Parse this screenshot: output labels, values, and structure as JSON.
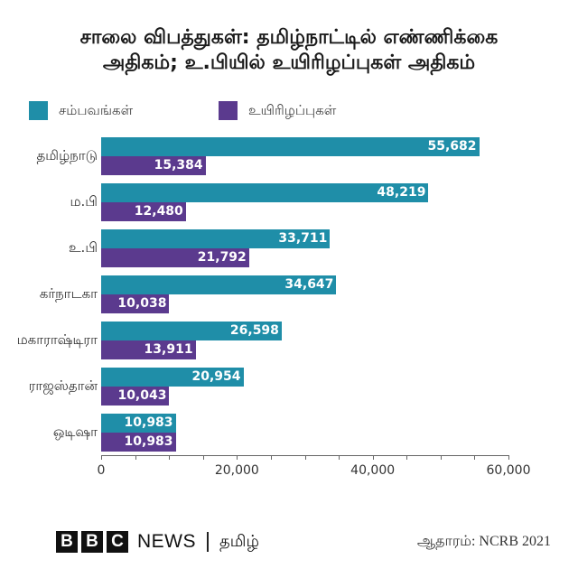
{
  "title": {
    "line1": "சாலை விபத்துகள்: தமிழ்நாட்டில் எண்ணிக்கை",
    "line2": "அதிகம்; உ.பியில் உயிரிழப்புகள் அதிகம்"
  },
  "legend": [
    {
      "label": "சம்பவங்கள்",
      "color": "#1f8ea8"
    },
    {
      "label": "உயிரிழப்புகள்",
      "color": "#5b3a8e"
    }
  ],
  "colors": {
    "accidents": "#1f8ea8",
    "deaths": "#5b3a8e"
  },
  "axis": {
    "ticks": [
      "0",
      "20,000",
      "40,000",
      "60,000"
    ],
    "min": 0,
    "max": 60000
  },
  "rows": [
    {
      "state": "தமிழ்நாடு",
      "accidents": 55682,
      "accidents_label": "55,682",
      "deaths": 15384,
      "deaths_label": "15,384"
    },
    {
      "state": "ம.பி",
      "accidents": 48219,
      "accidents_label": "48,219",
      "deaths": 12480,
      "deaths_label": "12,480"
    },
    {
      "state": "உ.பி",
      "accidents": 33711,
      "accidents_label": "33,711",
      "deaths": 21792,
      "deaths_label": "21,792"
    },
    {
      "state": "கர்நாடகா",
      "accidents": 34647,
      "accidents_label": "34,647",
      "deaths": 10038,
      "deaths_label": "10,038"
    },
    {
      "state": "மகாராஷ்டிரா",
      "accidents": 26598,
      "accidents_label": "26,598",
      "deaths": 13911,
      "deaths_label": "13,911"
    },
    {
      "state": "ராஜஸ்தான்",
      "accidents": 20954,
      "accidents_label": "20,954",
      "deaths": 10043,
      "deaths_label": "10,043"
    },
    {
      "state": "ஒடிஷா",
      "accidents": 10983,
      "accidents_label": "10,983",
      "deaths": 10983,
      "deaths_label": "10,983"
    }
  ],
  "footer": {
    "bbc_letters": [
      "B",
      "B",
      "C"
    ],
    "news": "NEWS",
    "brand_language": "தமிழ்",
    "source": "ஆதாரம்: NCRB 2021"
  },
  "chart_data": {
    "type": "bar",
    "orientation": "horizontal",
    "title": "சாலை விபத்துகள்: தமிழ்நாட்டில் எண்ணிக்கை அதிகம்; உ.பியில் உயிரிழப்புகள் அதிகம்",
    "categories": [
      "தமிழ்நாடு",
      "ம.பி",
      "உ.பி",
      "கர்நாடகா",
      "மகாராஷ்டிரா",
      "ராஜஸ்தான்",
      "ஒடிஷா"
    ],
    "series": [
      {
        "name": "சம்பவங்கள்",
        "color": "#1f8ea8",
        "values": [
          55682,
          48219,
          33711,
          34647,
          26598,
          20954,
          10983
        ]
      },
      {
        "name": "உயிரிழப்புகள்",
        "color": "#5b3a8e",
        "values": [
          15384,
          12480,
          21792,
          10038,
          13911,
          10043,
          10983
        ]
      }
    ],
    "xlabel": "",
    "ylabel": "",
    "xlim": [
      0,
      60000
    ],
    "xticks": [
      0,
      20000,
      40000,
      60000
    ],
    "grid": false,
    "legend_position": "top-left",
    "source": "ஆதாரம்: NCRB 2021"
  }
}
